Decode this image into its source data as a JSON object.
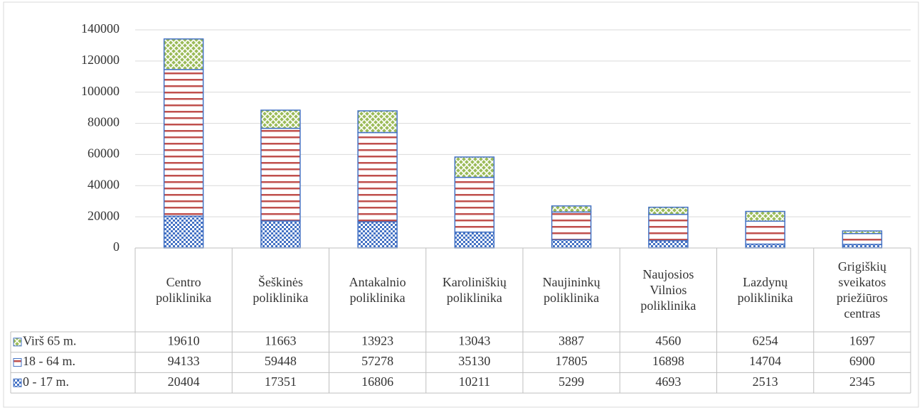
{
  "chart_data": {
    "type": "stacked-bar",
    "categories": [
      "Centro poliklinika",
      "Šeškinės poliklinika",
      "Antakalnio poliklinika",
      "Karoliniškių poliklinika",
      "Naujininkų poliklinika",
      "Naujosios Vilnios poliklinika",
      "Lazdynų poliklinika",
      "Grigiškių sveikatos priežiūros centras"
    ],
    "series": [
      {
        "name": "Virš 65 m.",
        "color": "#9bbb59",
        "values": [
          19610,
          11663,
          13923,
          13043,
          3887,
          4560,
          6254,
          1697
        ]
      },
      {
        "name": "18 - 64 m.",
        "color": "#c0504d",
        "values": [
          94133,
          59448,
          57278,
          35130,
          17805,
          16898,
          14704,
          6900
        ]
      },
      {
        "name": "0 - 17 m.",
        "color": "#4472c4",
        "values": [
          20404,
          17351,
          16806,
          10211,
          5299,
          4693,
          2513,
          2345
        ]
      }
    ],
    "ylim": [
      0,
      140000
    ],
    "yticks": [
      0,
      20000,
      40000,
      60000,
      80000,
      100000,
      120000,
      140000
    ],
    "grid": true,
    "data_table": true
  }
}
